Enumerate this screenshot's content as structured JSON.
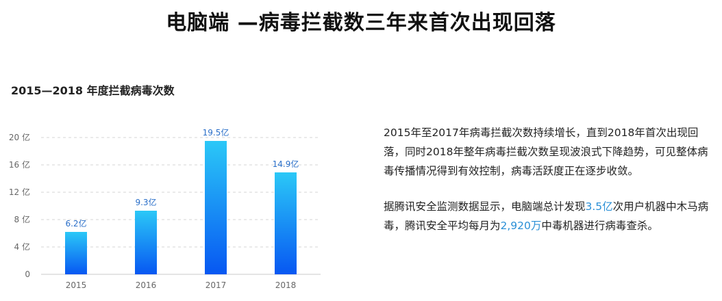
{
  "title": "电脑端 —病毒拦截数三年来首次出现回落",
  "chart_title": "2015—2018 年度拦截病毒次数",
  "chart_data": {
    "type": "bar",
    "title": "2015—2018 年度拦截病毒次数",
    "categories": [
      "2015",
      "2016",
      "2017",
      "2018"
    ],
    "values": [
      6.2,
      9.3,
      19.5,
      14.9
    ],
    "value_labels": [
      "6.2亿",
      "9.3亿",
      "19.5亿",
      "14.9亿"
    ],
    "ylim": [
      0,
      20
    ],
    "yticks": [
      0,
      4,
      8,
      12,
      16,
      20
    ],
    "ytick_labels": [
      "0",
      "4 亿",
      "8 亿",
      "12 亿",
      "16 亿",
      "20 亿"
    ],
    "grid": true,
    "colors": {
      "bar_top": "#2bc8f7",
      "bar_bottom": "#0757f2",
      "label": "#2a6fc9",
      "grid": "#d5d5d5",
      "tick": "#666666",
      "axis": "#c8c8c8"
    }
  },
  "description": {
    "p1": "2015年至2017年病毒拦截次数持续增长，直到2018年首次出现回落，同时2018年整年病毒拦截次数呈现波浪式下降趋势，可见整体病毒传播情况得到有效控制，病毒活跃度正在逐步收敛。",
    "p2_before": "据腾讯安全监测数据显示，电脑端总计发现",
    "p2_hl1": "3.5亿",
    "p2_mid": "次用户机器中木马病毒，腾讯安全平均每月为",
    "p2_hl2": "2,920万",
    "p2_after": "中毒机器进行病毒查杀。"
  }
}
